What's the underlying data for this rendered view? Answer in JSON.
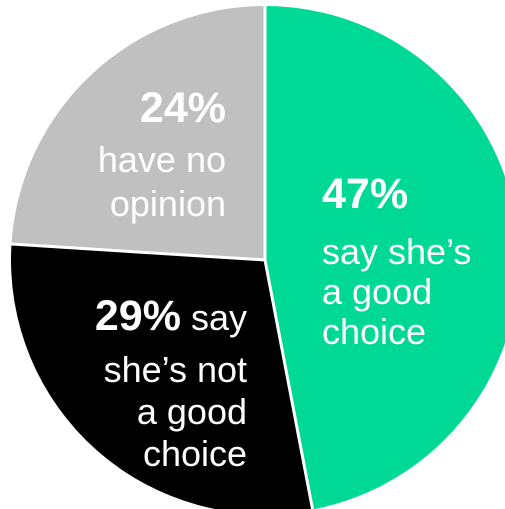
{
  "chart_data": {
    "type": "pie",
    "slices": [
      {
        "value": 47,
        "percent_label": "47%",
        "description_lines": [
          "say she’s",
          "a good",
          "choice"
        ],
        "inline_desc": "",
        "color": "#00d896"
      },
      {
        "value": 29,
        "percent_label": "29%",
        "inline_desc": "say",
        "description_lines": [
          "she’s not",
          "a good",
          "choice"
        ],
        "color": "#000000"
      },
      {
        "value": 24,
        "percent_label": "24%",
        "description_lines": [
          "have no",
          "opinion"
        ],
        "inline_desc": "",
        "color": "#c0c0c0"
      }
    ],
    "separator_color": "#ffffff",
    "text_color": "#ffffff"
  }
}
